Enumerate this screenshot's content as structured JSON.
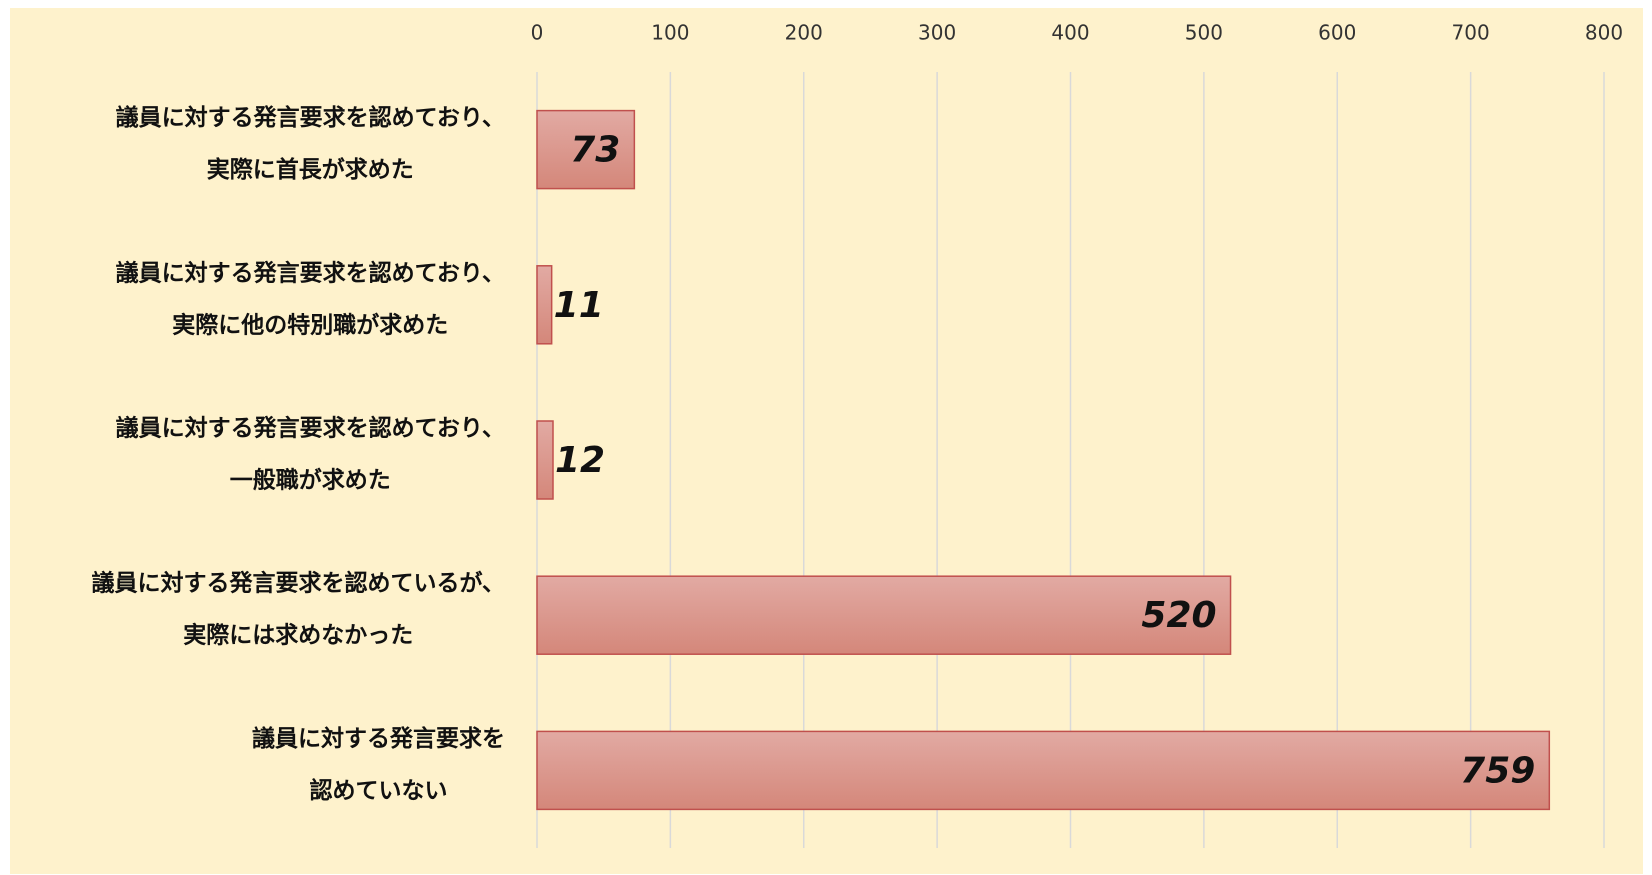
{
  "chart_data": {
    "type": "barh",
    "categories": [
      [
        "議員に対する発言要求を認めており、",
        "実際に首長が求めた"
      ],
      [
        "議員に対する発言要求を認めており、",
        "実際に他の特別職が求めた"
      ],
      [
        "議員に対する発言要求を認めており、",
        "一般職が求めた"
      ],
      [
        "議員に対する発言要求を認めているが、",
        "実際には求めなかった"
      ],
      [
        "議員に対する発言要求を",
        "認めていない"
      ]
    ],
    "values": [
      73,
      11,
      12,
      520,
      759
    ],
    "color": "#c0504d",
    "xlim": [
      0,
      800
    ],
    "xticks": [
      0,
      100,
      200,
      300,
      400,
      500,
      600,
      700,
      800
    ],
    "grid": true
  }
}
